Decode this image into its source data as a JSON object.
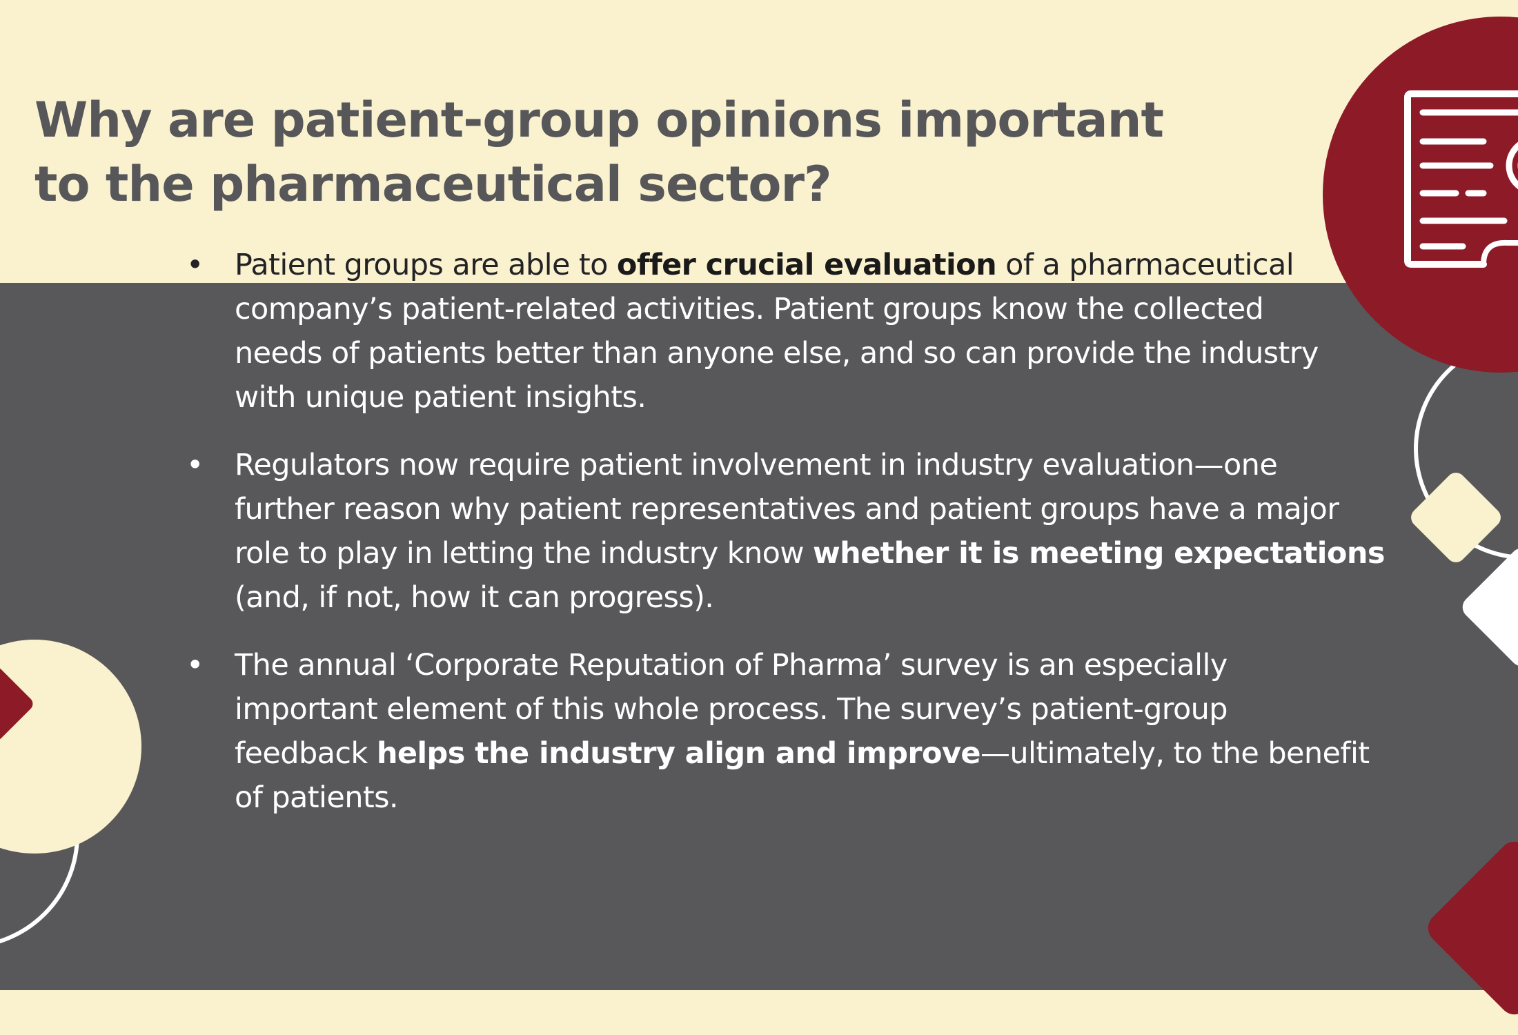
{
  "colors": {
    "cream": "#faf2cf",
    "panel_gray": "#58585a",
    "maroon": "#8c1a27",
    "title_gray": "#57575a",
    "white": "#ffffff"
  },
  "title": {
    "line1": "Why are patient-group opinions important",
    "line2": "to the pharmaceutical sector?"
  },
  "bullets": [
    {
      "marker": "•",
      "l1_pre": "Patient groups are able to ",
      "l1_bold": "offer crucial evaluation",
      "l1_post": " of a pharmaceutical",
      "l2": "company’s patient-related activities. Patient groups know the collected",
      "l3": "needs of patients better than anyone else, and so can provide the industry",
      "l4": "with unique patient insights."
    },
    {
      "marker": "•",
      "l1": "Regulators now require patient involvement in industry evaluation—one",
      "l2": "further reason why patient representatives and patient groups have a major",
      "l3_pre": "role to play in letting the industry know ",
      "l3_bold": "whether it is meeting expectations",
      "l4": "(and, if not, how it can progress)."
    },
    {
      "marker": "•",
      "l1": "The annual ‘Corporate Reputation of Pharma’ survey is an especially",
      "l2": "important element of this whole process. The survey’s patient-group",
      "l3_pre": "feedback ",
      "l3_bold": "helps the industry align and improve",
      "l3_post": "—ultimately, to the benefit",
      "l4": "of patients."
    }
  ],
  "icons": [
    "document-certificate-icon"
  ]
}
